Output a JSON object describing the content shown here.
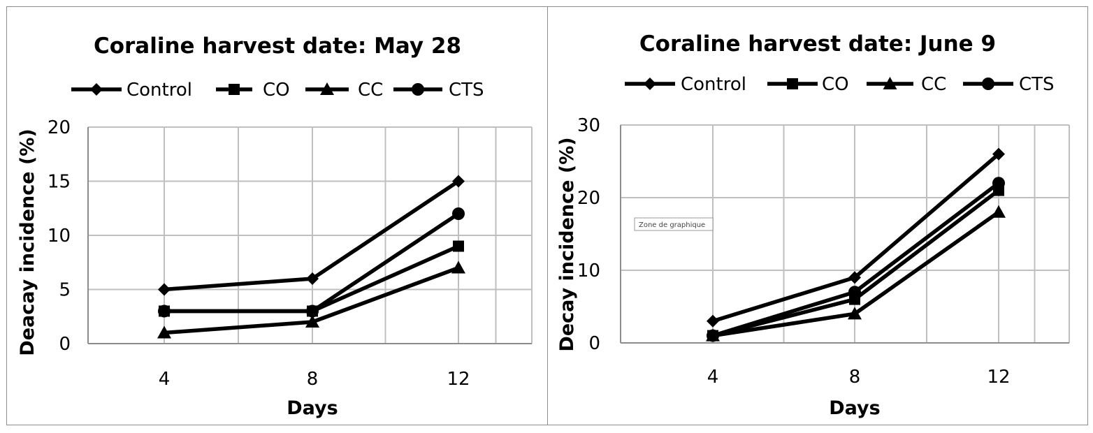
{
  "chart_data": [
    {
      "type": "line",
      "title": "Coraline harvest date: May 28",
      "xlabel": "Days",
      "ylabel": "Deacay incidence (%)",
      "categories": [
        "4",
        "8",
        "12"
      ],
      "ylim": [
        0,
        20
      ],
      "yticks": [
        0,
        5,
        10,
        15,
        20
      ],
      "grid": true,
      "legend_position": "top",
      "series": [
        {
          "name": "Control",
          "marker": "diamond",
          "values": [
            5,
            6,
            15
          ]
        },
        {
          "name": "CO",
          "marker": "square",
          "values": [
            3,
            3,
            9
          ]
        },
        {
          "name": "CC",
          "marker": "triangle",
          "values": [
            1,
            2,
            7
          ]
        },
        {
          "name": "CTS",
          "marker": "circle",
          "values": [
            3,
            3,
            12
          ]
        }
      ]
    },
    {
      "type": "line",
      "title": "Coraline harvest date: June 9",
      "xlabel": "Days",
      "ylabel": "Decay incidence (%)",
      "categories": [
        "4",
        "8",
        "12"
      ],
      "ylim": [
        0,
        30
      ],
      "yticks": [
        0,
        10,
        20,
        30
      ],
      "grid": true,
      "legend_position": "top",
      "series": [
        {
          "name": "Control",
          "marker": "diamond",
          "values": [
            3,
            9,
            26
          ]
        },
        {
          "name": "CO",
          "marker": "square",
          "values": [
            1,
            6,
            21
          ]
        },
        {
          "name": "CC",
          "marker": "triangle",
          "values": [
            1,
            4,
            18
          ]
        },
        {
          "name": "CTS",
          "marker": "circle",
          "values": [
            1,
            7,
            22
          ]
        }
      ],
      "tooltip": "Zone de graphique"
    }
  ],
  "colors": {
    "series": "#000000",
    "grid": "#bfbfbf",
    "border": "#8c8c8c"
  }
}
